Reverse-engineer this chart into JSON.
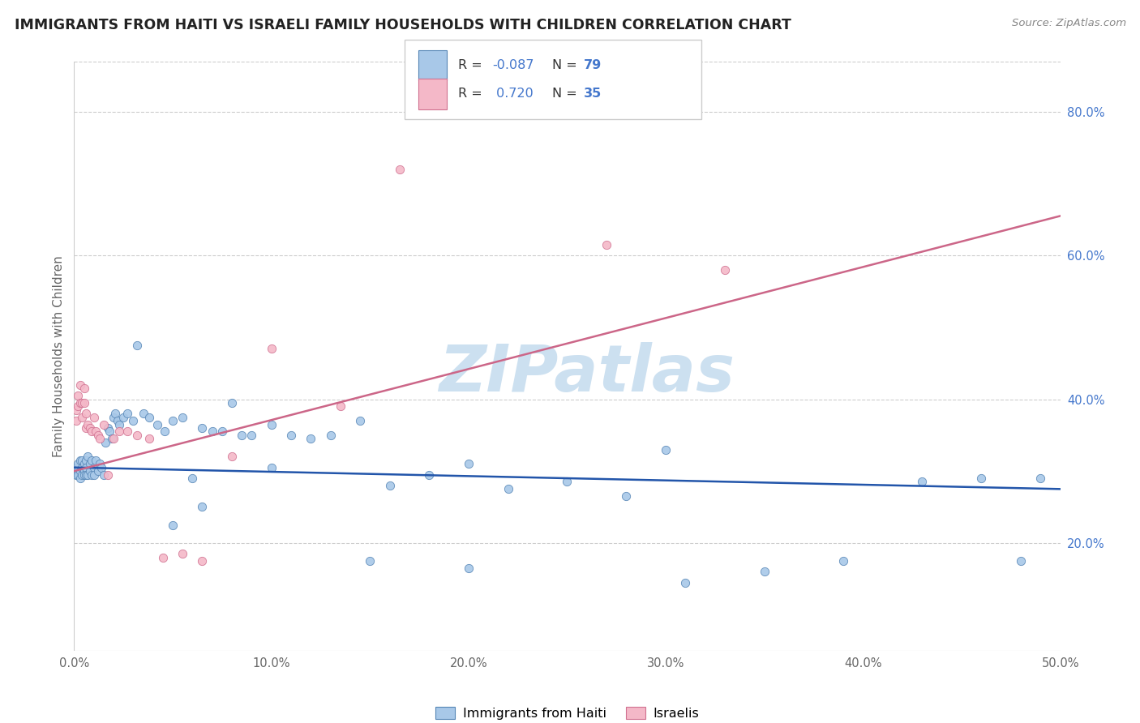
{
  "title": "IMMIGRANTS FROM HAITI VS ISRAELI FAMILY HOUSEHOLDS WITH CHILDREN CORRELATION CHART",
  "source": "Source: ZipAtlas.com",
  "ylabel_label": "Family Households with Children",
  "legend_label1": "Immigrants from Haiti",
  "legend_label2": "Israelis",
  "color_blue_fill": "#a8c8e8",
  "color_pink_fill": "#f4b8c8",
  "color_blue_edge": "#5585b5",
  "color_pink_edge": "#d07090",
  "color_line_blue": "#2255aa",
  "color_line_pink": "#cc6688",
  "color_grid": "#cccccc",
  "color_tick_blue": "#4477cc",
  "watermark_color": "#cce0f0",
  "xlim": [
    0.0,
    0.5
  ],
  "ylim": [
    0.05,
    0.87
  ],
  "xticks": [
    0.0,
    0.1,
    0.2,
    0.3,
    0.4,
    0.5
  ],
  "xticklabels": [
    "0.0%",
    "10.0%",
    "20.0%",
    "30.0%",
    "40.0%",
    "50.0%"
  ],
  "yticks_right": [
    0.2,
    0.4,
    0.6,
    0.8
  ],
  "yticklabels_right": [
    "20.0%",
    "40.0%",
    "60.0%",
    "80.0%"
  ],
  "blue_line_x0": 0.0,
  "blue_line_x1": 0.5,
  "blue_line_y0": 0.305,
  "blue_line_y1": 0.275,
  "pink_line_x0": 0.0,
  "pink_line_x1": 0.5,
  "pink_line_y0": 0.3,
  "pink_line_y1": 0.655,
  "blue_x": [
    0.001,
    0.001,
    0.002,
    0.002,
    0.002,
    0.003,
    0.003,
    0.003,
    0.004,
    0.004,
    0.004,
    0.005,
    0.005,
    0.005,
    0.006,
    0.006,
    0.006,
    0.007,
    0.007,
    0.008,
    0.008,
    0.009,
    0.009,
    0.01,
    0.01,
    0.011,
    0.012,
    0.013,
    0.014,
    0.015,
    0.016,
    0.017,
    0.018,
    0.019,
    0.02,
    0.021,
    0.022,
    0.023,
    0.025,
    0.027,
    0.03,
    0.032,
    0.035,
    0.038,
    0.042,
    0.046,
    0.05,
    0.055,
    0.06,
    0.065,
    0.07,
    0.075,
    0.08,
    0.085,
    0.09,
    0.1,
    0.11,
    0.12,
    0.13,
    0.145,
    0.16,
    0.18,
    0.2,
    0.22,
    0.25,
    0.28,
    0.31,
    0.35,
    0.39,
    0.43,
    0.46,
    0.48,
    0.49,
    0.05,
    0.065,
    0.1,
    0.15,
    0.2,
    0.3
  ],
  "blue_y": [
    0.305,
    0.295,
    0.31,
    0.3,
    0.295,
    0.315,
    0.3,
    0.29,
    0.315,
    0.305,
    0.295,
    0.31,
    0.3,
    0.295,
    0.315,
    0.305,
    0.295,
    0.32,
    0.295,
    0.31,
    0.3,
    0.295,
    0.315,
    0.305,
    0.295,
    0.315,
    0.3,
    0.31,
    0.305,
    0.295,
    0.34,
    0.36,
    0.355,
    0.345,
    0.375,
    0.38,
    0.37,
    0.365,
    0.375,
    0.38,
    0.37,
    0.475,
    0.38,
    0.375,
    0.365,
    0.355,
    0.37,
    0.375,
    0.29,
    0.36,
    0.355,
    0.355,
    0.395,
    0.35,
    0.35,
    0.365,
    0.35,
    0.345,
    0.35,
    0.37,
    0.28,
    0.295,
    0.31,
    0.275,
    0.285,
    0.265,
    0.145,
    0.16,
    0.175,
    0.285,
    0.29,
    0.175,
    0.29,
    0.225,
    0.25,
    0.305,
    0.175,
    0.165,
    0.33
  ],
  "pink_x": [
    0.001,
    0.001,
    0.002,
    0.002,
    0.003,
    0.003,
    0.004,
    0.004,
    0.005,
    0.005,
    0.006,
    0.006,
    0.007,
    0.008,
    0.009,
    0.01,
    0.011,
    0.012,
    0.013,
    0.015,
    0.017,
    0.02,
    0.023,
    0.027,
    0.032,
    0.038,
    0.045,
    0.055,
    0.065,
    0.08,
    0.1,
    0.135,
    0.165,
    0.27,
    0.33
  ],
  "pink_y": [
    0.385,
    0.37,
    0.405,
    0.39,
    0.395,
    0.42,
    0.395,
    0.375,
    0.415,
    0.395,
    0.38,
    0.36,
    0.365,
    0.36,
    0.355,
    0.375,
    0.355,
    0.35,
    0.345,
    0.365,
    0.295,
    0.345,
    0.355,
    0.355,
    0.35,
    0.345,
    0.18,
    0.185,
    0.175,
    0.32,
    0.47,
    0.39,
    0.72,
    0.615,
    0.58
  ]
}
